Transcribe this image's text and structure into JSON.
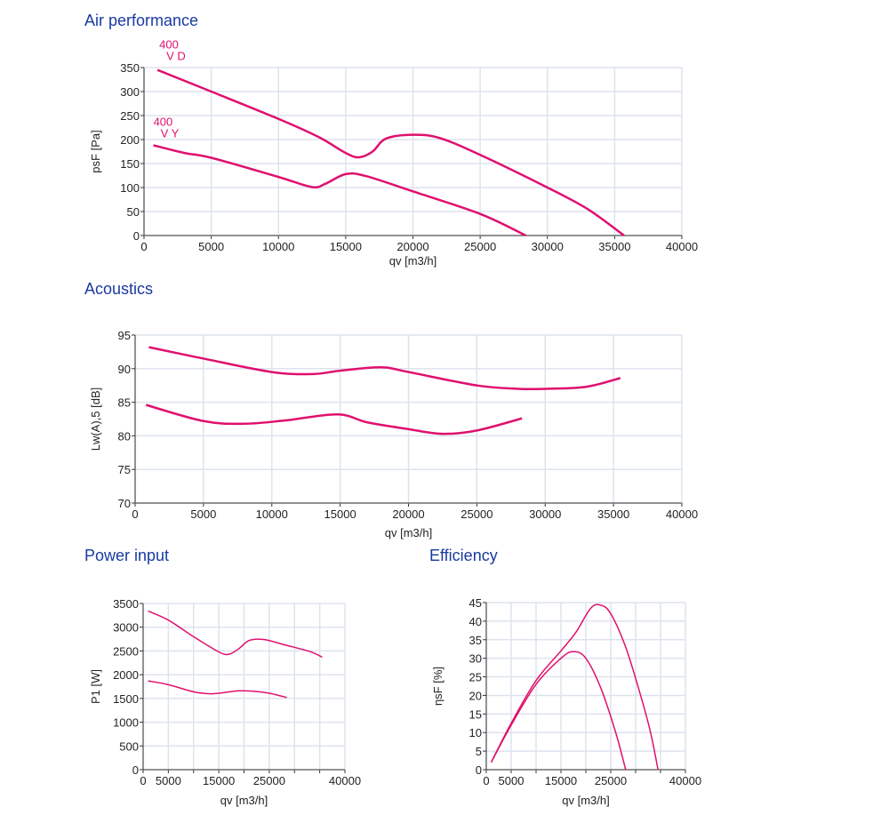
{
  "colors": {
    "curve": "#e0106e",
    "grid": "#dde3ee",
    "title": "#1a3aa0"
  },
  "chart_data": [
    {
      "id": "air",
      "type": "line",
      "title": "Air performance",
      "xlabel": "qv [m3/h]",
      "ylabel": "psF [Pa]",
      "xlim": [
        0,
        40000
      ],
      "ylim": [
        0,
        350
      ],
      "xticks": [
        0,
        5000,
        10000,
        15000,
        20000,
        25000,
        30000,
        35000,
        40000
      ],
      "xtick_labels": [
        "0",
        "5000",
        "10000",
        "15000",
        "20000",
        "25000",
        "30000",
        "35000",
        "40000"
      ],
      "yticks": [
        0,
        50,
        100,
        150,
        200,
        250,
        300,
        350
      ],
      "grid": true,
      "series": [
        {
          "name": "400 VD",
          "label_line1": "400",
          "label_line2": "V D",
          "points": [
            [
              1000,
              345
            ],
            [
              5000,
              300
            ],
            [
              10000,
              243
            ],
            [
              13000,
              205
            ],
            [
              15000,
              172
            ],
            [
              16000,
              163
            ],
            [
              17000,
              175
            ],
            [
              18000,
              202
            ],
            [
              20000,
              210
            ],
            [
              22000,
              203
            ],
            [
              25000,
              168
            ],
            [
              30000,
              100
            ],
            [
              33000,
              55
            ],
            [
              35700,
              0
            ]
          ]
        },
        {
          "name": "400 VY",
          "label_line1": "400",
          "label_line2": "V Y",
          "points": [
            [
              700,
              188
            ],
            [
              3000,
              172
            ],
            [
              5000,
              162
            ],
            [
              10000,
              122
            ],
            [
              12500,
              101
            ],
            [
              13500,
              108
            ],
            [
              15000,
              128
            ],
            [
              16500,
              124
            ],
            [
              20000,
              92
            ],
            [
              25000,
              45
            ],
            [
              28400,
              0
            ]
          ]
        }
      ]
    },
    {
      "id": "acoustics",
      "type": "line",
      "title": "Acoustics",
      "xlabel": "qv [m3/h]",
      "ylabel": "Lw(A),5 [dB]",
      "xlim": [
        0,
        40000
      ],
      "ylim": [
        70,
        95
      ],
      "xticks": [
        0,
        5000,
        10000,
        15000,
        20000,
        25000,
        30000,
        35000,
        40000
      ],
      "xtick_labels": [
        "0",
        "5000",
        "10000",
        "15000",
        "20000",
        "25000",
        "30000",
        "35000",
        "40000"
      ],
      "yticks": [
        70,
        75,
        80,
        85,
        90,
        95
      ],
      "grid": true,
      "series": [
        {
          "name": "400 VD",
          "points": [
            [
              1000,
              93.2
            ],
            [
              5000,
              91.5
            ],
            [
              10000,
              89.5
            ],
            [
              13000,
              89.2
            ],
            [
              15000,
              89.7
            ],
            [
              18000,
              90.2
            ],
            [
              20000,
              89.5
            ],
            [
              25000,
              87.5
            ],
            [
              28000,
              87
            ],
            [
              30000,
              87
            ],
            [
              33000,
              87.3
            ],
            [
              35500,
              88.6
            ]
          ]
        },
        {
          "name": "400 VY",
          "points": [
            [
              800,
              84.6
            ],
            [
              5000,
              82.2
            ],
            [
              8000,
              81.8
            ],
            [
              11000,
              82.3
            ],
            [
              14800,
              83.2
            ],
            [
              17000,
              82
            ],
            [
              20000,
              81
            ],
            [
              22500,
              80.3
            ],
            [
              25000,
              80.8
            ],
            [
              28300,
              82.6
            ]
          ]
        }
      ]
    },
    {
      "id": "power",
      "type": "line",
      "title": "Power input",
      "xlabel": "qv [m3/h]",
      "ylabel": "P1 [W]",
      "xlim": [
        0,
        40000
      ],
      "ylim": [
        0,
        3500
      ],
      "xticks": [
        0,
        5000,
        10000,
        15000,
        20000,
        25000,
        30000,
        35000,
        40000
      ],
      "xtick_labels": [
        "0",
        "5000",
        "",
        "15000",
        "",
        "25000",
        "",
        "",
        "40000"
      ],
      "yticks": [
        0,
        500,
        1000,
        1500,
        2000,
        2500,
        3000,
        3500
      ],
      "grid": true,
      "series": [
        {
          "name": "400 VD",
          "points": [
            [
              1000,
              3340
            ],
            [
              5000,
              3150
            ],
            [
              10000,
              2800
            ],
            [
              15000,
              2480
            ],
            [
              17000,
              2430
            ],
            [
              19000,
              2550
            ],
            [
              21000,
              2720
            ],
            [
              24000,
              2740
            ],
            [
              28000,
              2630
            ],
            [
              33000,
              2490
            ],
            [
              35500,
              2370
            ]
          ]
        },
        {
          "name": "400 VY",
          "points": [
            [
              1000,
              1870
            ],
            [
              5000,
              1790
            ],
            [
              10000,
              1640
            ],
            [
              13000,
              1600
            ],
            [
              15000,
              1610
            ],
            [
              19000,
              1660
            ],
            [
              22000,
              1650
            ],
            [
              25000,
              1610
            ],
            [
              28500,
              1520
            ]
          ]
        }
      ]
    },
    {
      "id": "efficiency",
      "type": "line",
      "title": "Efficiency",
      "xlabel": "qv [m3/h]",
      "ylabel": "ηsF [%]",
      "xlim": [
        0,
        40000
      ],
      "ylim": [
        0,
        45
      ],
      "xticks": [
        0,
        5000,
        10000,
        15000,
        20000,
        25000,
        30000,
        35000,
        40000
      ],
      "xtick_labels": [
        "0",
        "5000",
        "",
        "15000",
        "",
        "25000",
        "",
        "",
        "40000"
      ],
      "yticks": [
        0,
        5,
        10,
        15,
        20,
        25,
        30,
        35,
        40,
        45
      ],
      "grid": true,
      "series": [
        {
          "name": "400 VD",
          "points": [
            [
              1000,
              2
            ],
            [
              5000,
              12.5
            ],
            [
              10000,
              24
            ],
            [
              15000,
              32
            ],
            [
              18000,
              37
            ],
            [
              21000,
              43.5
            ],
            [
              23000,
              44.3
            ],
            [
              25000,
              42
            ],
            [
              28000,
              33
            ],
            [
              31000,
              20
            ],
            [
              33000,
              10
            ],
            [
              34500,
              0
            ]
          ]
        },
        {
          "name": "400 VY",
          "points": [
            [
              1000,
              2
            ],
            [
              5000,
              12
            ],
            [
              10000,
              23
            ],
            [
              15000,
              30
            ],
            [
              17500,
              31.8
            ],
            [
              20000,
              30
            ],
            [
              23000,
              22
            ],
            [
              26000,
              10
            ],
            [
              28000,
              0
            ]
          ]
        }
      ]
    }
  ]
}
